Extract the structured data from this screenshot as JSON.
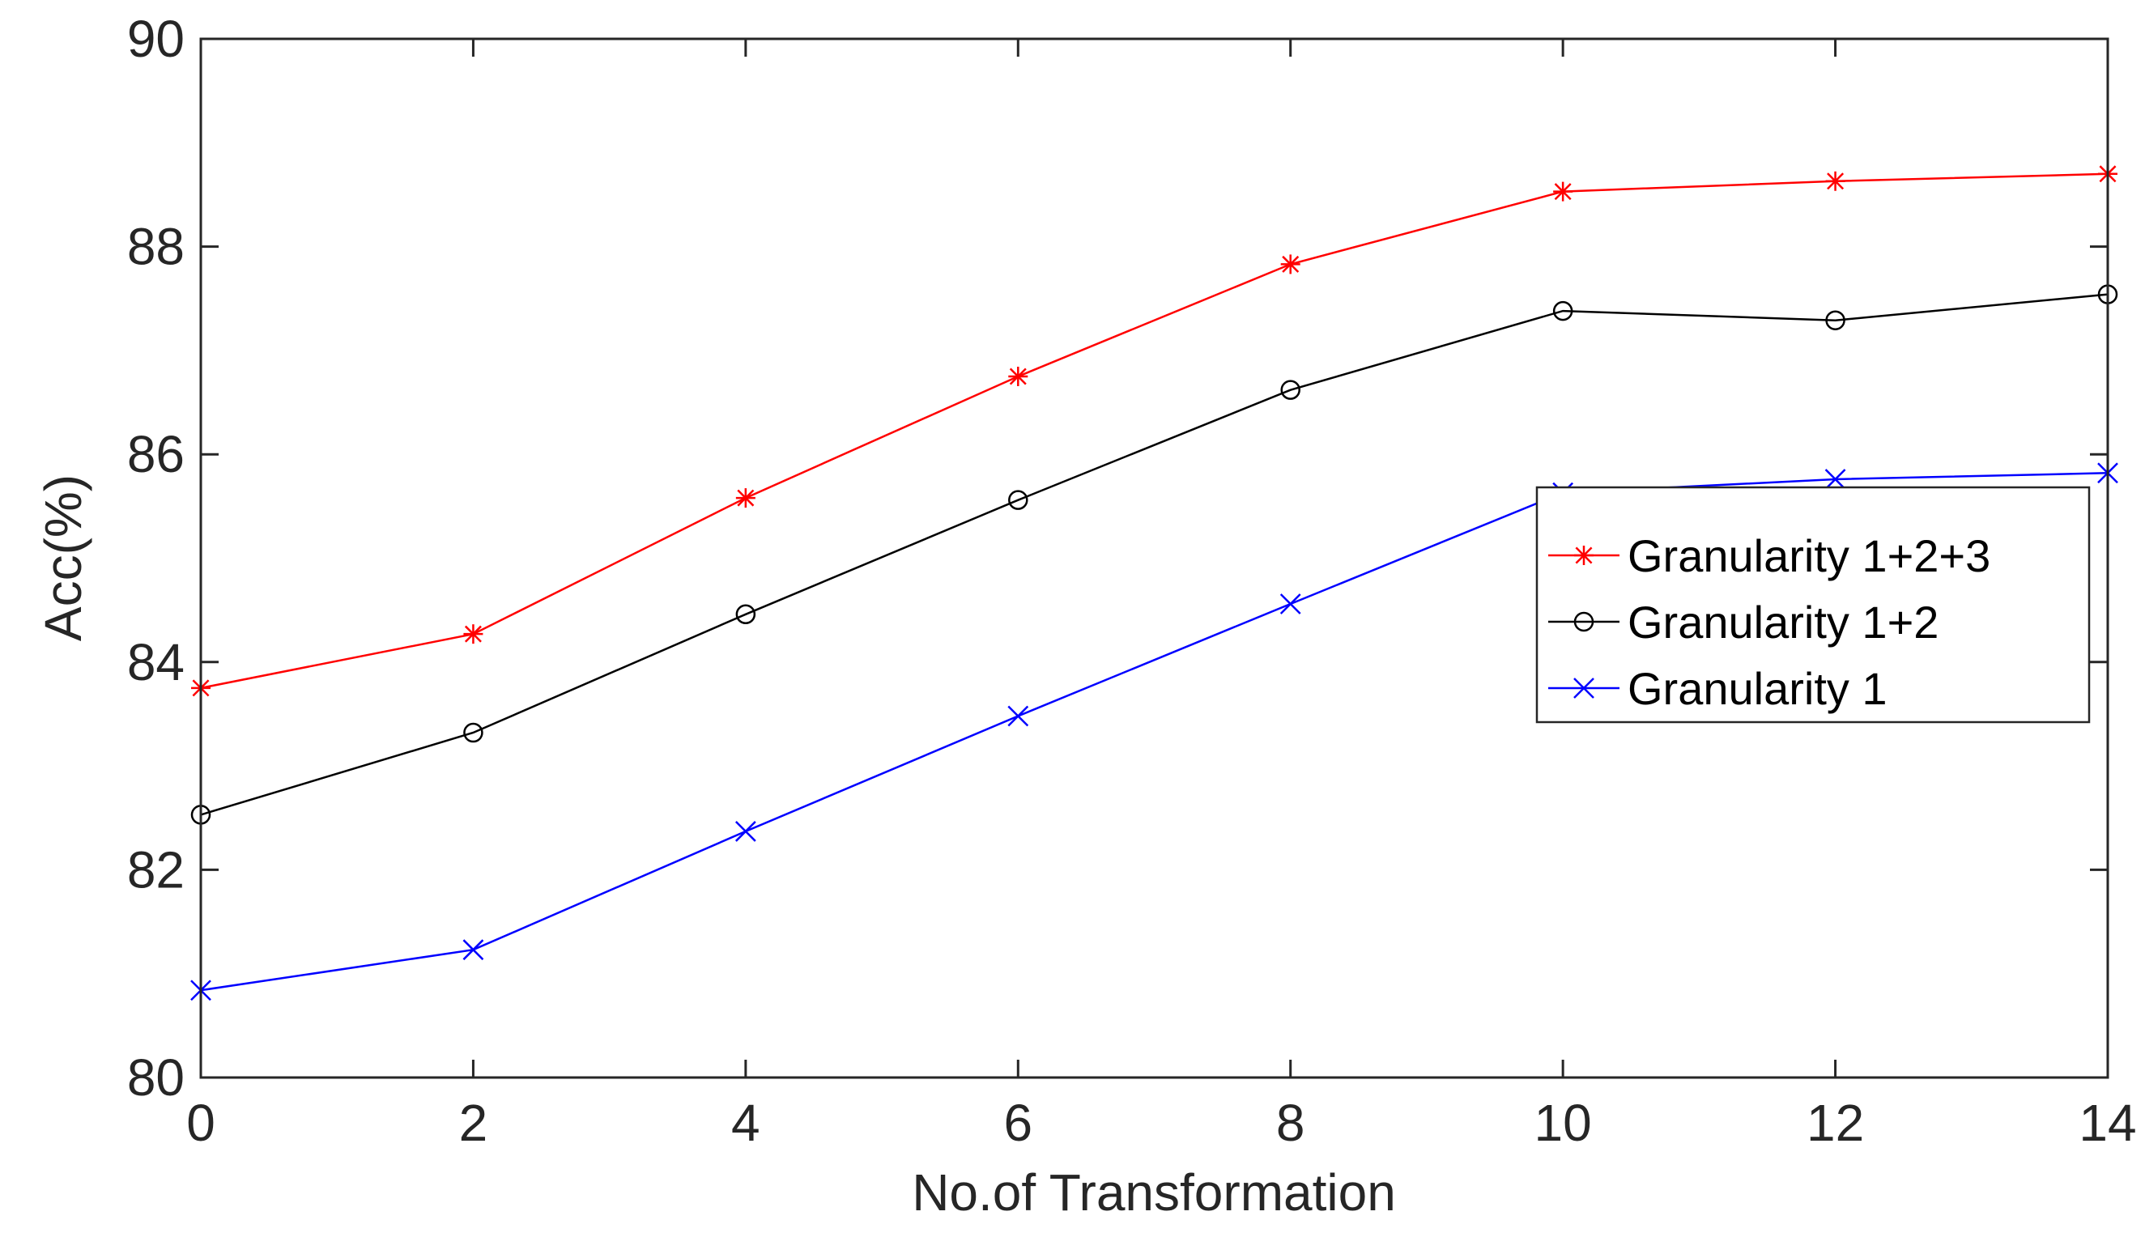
{
  "chart_data": {
    "type": "line",
    "title": "",
    "xlabel": "No.of Transformation",
    "ylabel": "Acc(%)",
    "x": [
      0,
      2,
      4,
      6,
      8,
      10,
      12,
      14
    ],
    "xlim": [
      0,
      14
    ],
    "ylim": [
      80,
      90
    ],
    "xticks": [
      0,
      2,
      4,
      6,
      8,
      10,
      12,
      14
    ],
    "yticks": [
      80,
      82,
      84,
      86,
      88,
      90
    ],
    "xtick_labels": [
      "0",
      "2",
      "4",
      "6",
      "8",
      "10",
      "12",
      "14"
    ],
    "ytick_labels": [
      "80",
      "82",
      "84",
      "86",
      "88",
      "90"
    ],
    "grid": false,
    "legend_position": "center-right",
    "series": [
      {
        "name": "Granularity 1+2+3",
        "color": "#ff0000",
        "marker": "asterisk",
        "values": [
          83.75,
          84.27,
          85.58,
          86.75,
          87.83,
          88.53,
          88.63,
          88.7
        ]
      },
      {
        "name": "Granularity 1+2",
        "color": "#000000",
        "marker": "circle",
        "values": [
          82.53,
          83.32,
          84.46,
          85.56,
          86.62,
          87.38,
          87.29,
          87.54
        ]
      },
      {
        "name": "Granularity 1",
        "color": "#0000ff",
        "marker": "x",
        "values": [
          80.84,
          81.23,
          82.37,
          83.48,
          84.56,
          85.63,
          85.76,
          85.82
        ]
      }
    ]
  }
}
